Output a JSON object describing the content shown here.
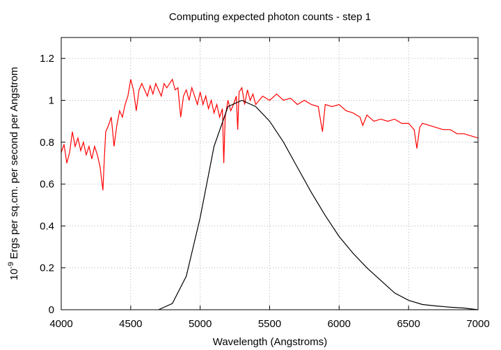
{
  "chart_data": {
    "type": "line",
    "title": "Computing expected photon counts - step 1",
    "xlabel": "Wavelength (Angstroms)",
    "ylabel": {
      "base": "10",
      "exponent": "-9",
      "text": "Ergs per sq.cm. per second per Angstrom"
    },
    "xlim": [
      4000,
      7000
    ],
    "xticks": [
      4000,
      4500,
      5000,
      5500,
      6000,
      6500,
      7000
    ],
    "ylim": [
      0,
      1.3
    ],
    "yticks": [
      0,
      0.2,
      0.4,
      0.6,
      0.8,
      1,
      1.2
    ],
    "grid": true,
    "series": [
      {
        "color": "#ff0000",
        "x": [
          4000,
          4020,
          4040,
          4060,
          4080,
          4100,
          4120,
          4140,
          4160,
          4180,
          4200,
          4220,
          4240,
          4260,
          4280,
          4300,
          4310,
          4320,
          4340,
          4360,
          4380,
          4400,
          4420,
          4440,
          4460,
          4480,
          4500,
          4520,
          4540,
          4560,
          4580,
          4600,
          4620,
          4640,
          4660,
          4680,
          4700,
          4720,
          4740,
          4760,
          4780,
          4800,
          4820,
          4840,
          4860,
          4880,
          4900,
          4920,
          4940,
          4960,
          4980,
          5000,
          5020,
          5040,
          5060,
          5080,
          5100,
          5120,
          5140,
          5160,
          5170,
          5180,
          5200,
          5220,
          5240,
          5260,
          5270,
          5280,
          5300,
          5320,
          5340,
          5360,
          5380,
          5400,
          5450,
          5500,
          5550,
          5600,
          5650,
          5700,
          5750,
          5800,
          5850,
          5880,
          5900,
          5950,
          6000,
          6050,
          6100,
          6150,
          6170,
          6200,
          6250,
          6300,
          6350,
          6400,
          6450,
          6500,
          6540,
          6560,
          6580,
          6600,
          6650,
          6700,
          6750,
          6800,
          6850,
          6900,
          6950,
          7000
        ],
        "values": [
          0.75,
          0.79,
          0.7,
          0.75,
          0.85,
          0.78,
          0.82,
          0.76,
          0.8,
          0.74,
          0.78,
          0.72,
          0.78,
          0.74,
          0.68,
          0.57,
          0.72,
          0.85,
          0.88,
          0.92,
          0.78,
          0.88,
          0.95,
          0.92,
          0.98,
          1.02,
          1.1,
          1.05,
          0.95,
          1.05,
          1.08,
          1.05,
          1.02,
          1.07,
          1.03,
          1.08,
          1.05,
          1.02,
          1.08,
          1.06,
          1.08,
          1.1,
          1.05,
          1.06,
          0.92,
          1.02,
          1.05,
          1.0,
          1.06,
          1.02,
          0.98,
          1.04,
          0.98,
          1.02,
          0.96,
          1.0,
          0.94,
          0.98,
          0.92,
          0.96,
          0.7,
          0.92,
          1.0,
          0.95,
          0.98,
          1.02,
          0.86,
          1.04,
          1.06,
          0.98,
          1.05,
          1.0,
          1.03,
          0.98,
          1.02,
          1.0,
          1.03,
          1.0,
          1.01,
          0.98,
          1.0,
          0.98,
          0.97,
          0.85,
          0.98,
          0.97,
          0.98,
          0.95,
          0.94,
          0.92,
          0.88,
          0.93,
          0.9,
          0.91,
          0.9,
          0.91,
          0.89,
          0.89,
          0.86,
          0.77,
          0.87,
          0.89,
          0.88,
          0.87,
          0.86,
          0.86,
          0.84,
          0.84,
          0.83,
          0.82
        ]
      },
      {
        "color": "#000000",
        "x": [
          4700,
          4800,
          4900,
          5000,
          5100,
          5200,
          5300,
          5400,
          5500,
          5600,
          5700,
          5800,
          5900,
          6000,
          6100,
          6200,
          6300,
          6400,
          6500,
          6600,
          6700,
          6800,
          6900,
          7000
        ],
        "values": [
          0,
          0.03,
          0.16,
          0.44,
          0.78,
          0.97,
          1,
          0.97,
          0.9,
          0.8,
          0.68,
          0.56,
          0.45,
          0.35,
          0.27,
          0.2,
          0.14,
          0.08,
          0.045,
          0.025,
          0.018,
          0.012,
          0.008,
          0
        ]
      }
    ]
  }
}
